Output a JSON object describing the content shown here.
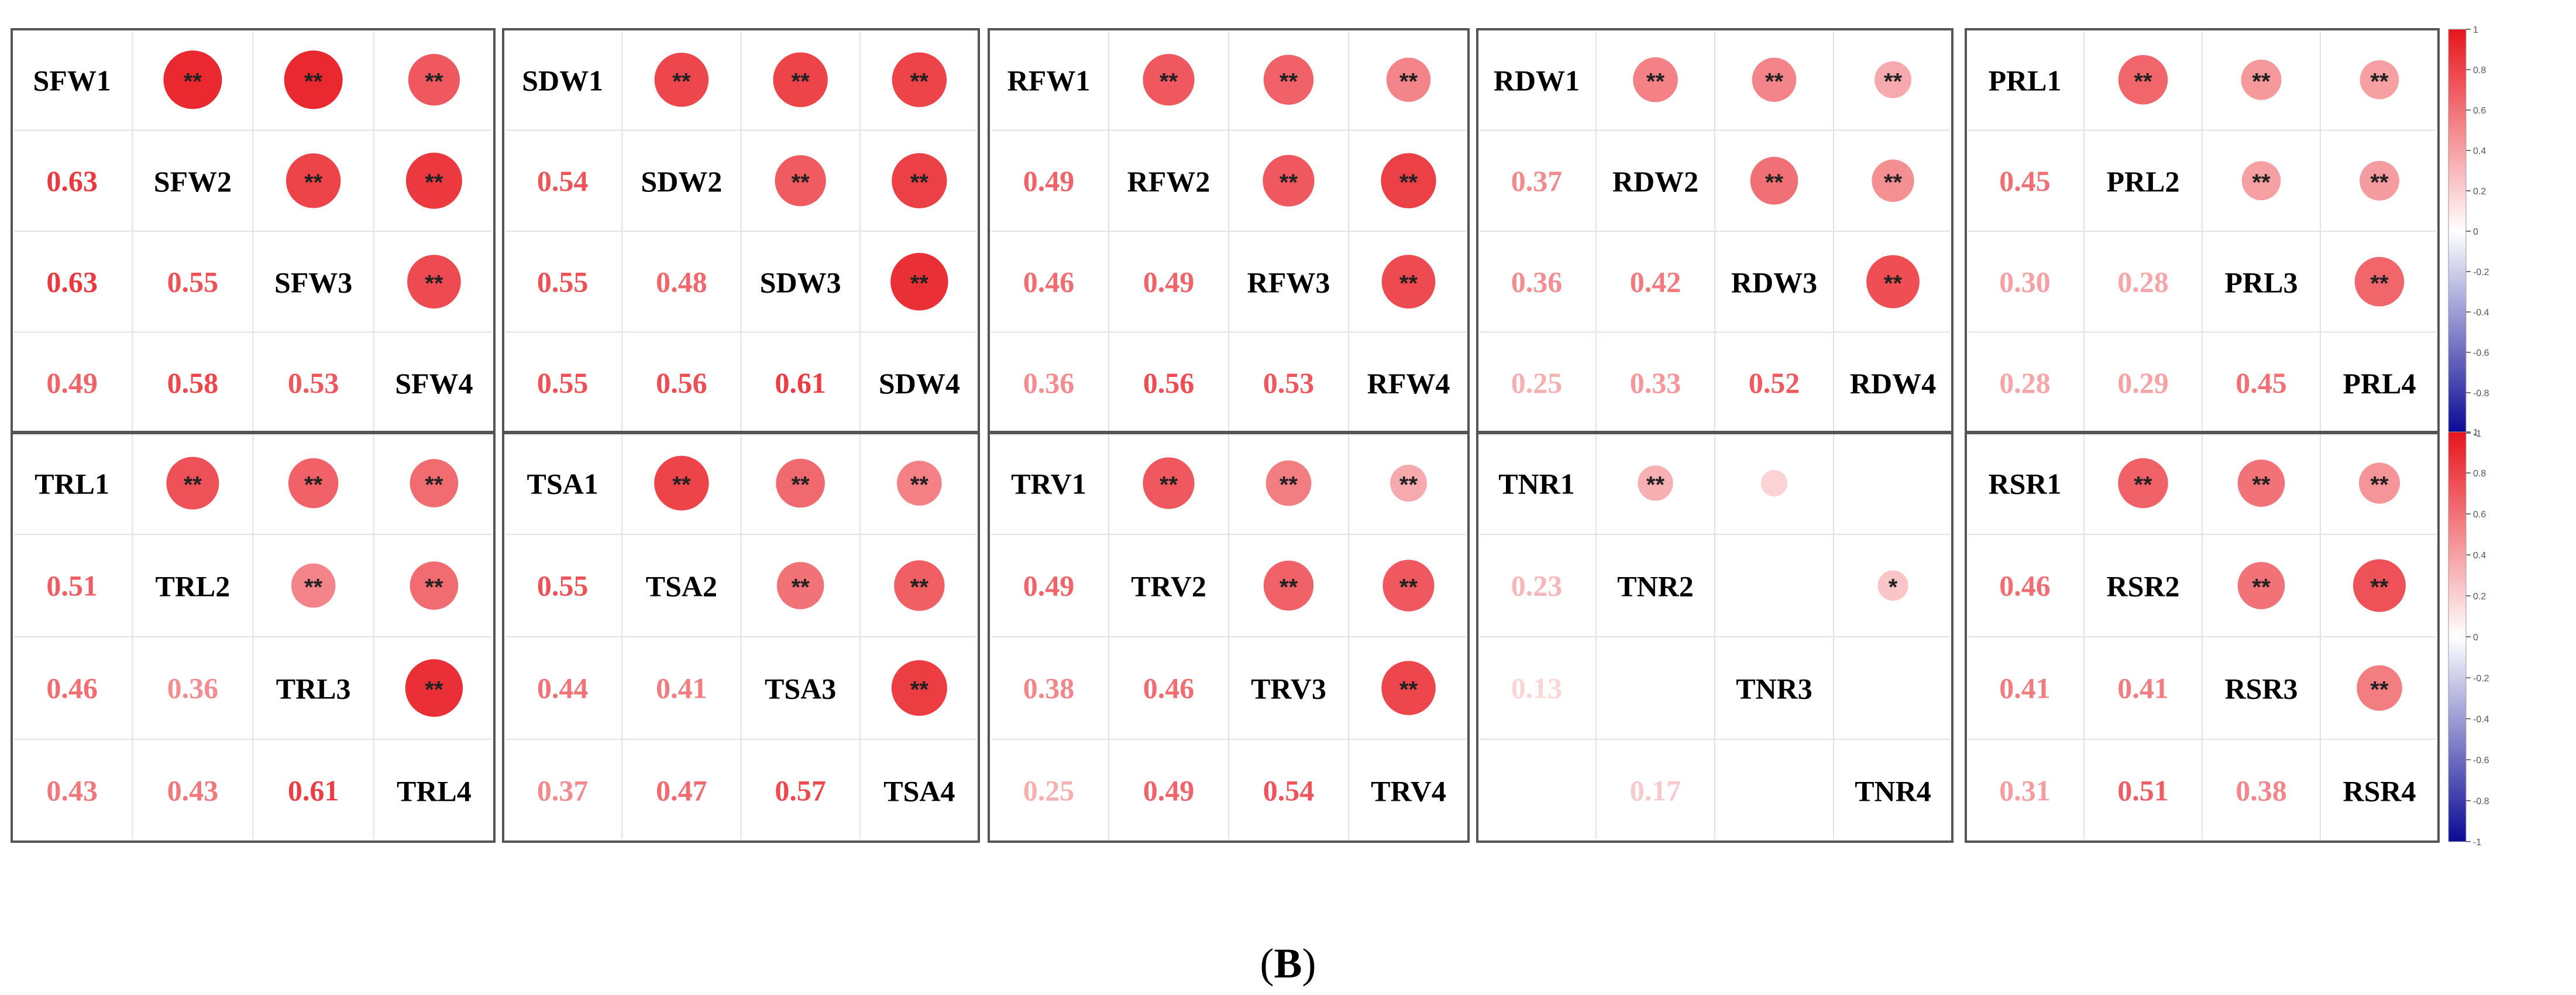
{
  "caption": {
    "open": "(",
    "label": "B",
    "close": ")"
  },
  "colorbar": {
    "ticks": [
      "1",
      "0.8",
      "0.6",
      "0.4",
      "0.2",
      "0",
      "-0.2",
      "-0.4",
      "-0.6",
      "-0.8",
      "-1"
    ],
    "colors": {
      "positive": "#e8141c",
      "neutral": "#ffffff",
      "negative": "#0a0a96"
    }
  },
  "chart_data": [
    {
      "type": "heatmap",
      "variables": [
        "SFW1",
        "SFW2",
        "SFW3",
        "SFW4"
      ],
      "lower": [
        [
          0.63
        ],
        [
          0.63,
          0.55
        ],
        [
          0.49,
          0.58,
          0.53
        ]
      ],
      "upper_sig": [
        [
          "**",
          "**",
          "**"
        ],
        [
          "**",
          "**"
        ],
        [
          "**"
        ]
      ]
    },
    {
      "type": "heatmap",
      "variables": [
        "SDW1",
        "SDW2",
        "SDW3",
        "SDW4"
      ],
      "lower": [
        [
          0.54
        ],
        [
          0.55,
          0.48
        ],
        [
          0.55,
          0.56,
          0.61
        ]
      ],
      "upper_sig": [
        [
          "**",
          "**",
          "**"
        ],
        [
          "**",
          "**"
        ],
        [
          "**"
        ]
      ]
    },
    {
      "type": "heatmap",
      "variables": [
        "RFW1",
        "RFW2",
        "RFW3",
        "RFW4"
      ],
      "lower": [
        [
          0.49
        ],
        [
          0.46,
          0.49
        ],
        [
          0.36,
          0.56,
          0.53
        ]
      ],
      "upper_sig": [
        [
          "**",
          "**",
          "**"
        ],
        [
          "**",
          "**"
        ],
        [
          "**"
        ]
      ]
    },
    {
      "type": "heatmap",
      "variables": [
        "RDW1",
        "RDW2",
        "RDW3",
        "RDW4"
      ],
      "lower": [
        [
          0.37
        ],
        [
          0.36,
          0.42
        ],
        [
          0.25,
          0.33,
          0.52
        ]
      ],
      "upper_sig": [
        [
          "**",
          "**",
          "**"
        ],
        [
          "**",
          "**"
        ],
        [
          "**"
        ]
      ]
    },
    {
      "type": "heatmap",
      "variables": [
        "PRL1",
        "PRL2",
        "PRL3",
        "PRL4"
      ],
      "lower": [
        [
          0.45
        ],
        [
          0.3,
          0.28
        ],
        [
          0.28,
          0.29,
          0.45
        ]
      ],
      "upper_sig": [
        [
          "**",
          "**",
          "**"
        ],
        [
          "**",
          "**"
        ],
        [
          "**"
        ]
      ]
    },
    {
      "type": "heatmap",
      "variables": [
        "TRL1",
        "TRL2",
        "TRL3",
        "TRL4"
      ],
      "lower": [
        [
          0.51
        ],
        [
          0.46,
          0.36
        ],
        [
          0.43,
          0.43,
          0.61
        ]
      ],
      "upper_sig": [
        [
          "**",
          "**",
          "**"
        ],
        [
          "**",
          "**"
        ],
        [
          "**"
        ]
      ]
    },
    {
      "type": "heatmap",
      "variables": [
        "TSA1",
        "TSA2",
        "TSA3",
        "TSA4"
      ],
      "lower": [
        [
          0.55
        ],
        [
          0.44,
          0.41
        ],
        [
          0.37,
          0.47,
          0.57
        ]
      ],
      "upper_sig": [
        [
          "**",
          "**",
          "**"
        ],
        [
          "**",
          "**"
        ],
        [
          "**"
        ]
      ]
    },
    {
      "type": "heatmap",
      "variables": [
        "TRV1",
        "TRV2",
        "TRV3",
        "TRV4"
      ],
      "lower": [
        [
          0.49
        ],
        [
          0.38,
          0.46
        ],
        [
          0.25,
          0.49,
          0.54
        ]
      ],
      "upper_sig": [
        [
          "**",
          "**",
          "**"
        ],
        [
          "**",
          "**"
        ],
        [
          "**"
        ]
      ]
    },
    {
      "type": "heatmap",
      "variables": [
        "TNR1",
        "TNR2",
        "TNR3",
        "TNR4"
      ],
      "lower": [
        [
          0.23
        ],
        [
          0.13,
          null
        ],
        [
          null,
          0.17,
          null
        ]
      ],
      "upper_sig": [
        [
          "**",
          "",
          ""
        ],
        [
          "",
          "*"
        ],
        [
          ""
        ]
      ]
    },
    {
      "type": "heatmap",
      "variables": [
        "RSR1",
        "RSR2",
        "RSR3",
        "RSR4"
      ],
      "lower": [
        [
          0.46
        ],
        [
          0.41,
          0.41
        ],
        [
          0.31,
          0.51,
          0.38
        ]
      ],
      "upper_sig": [
        [
          "**",
          "**",
          "**"
        ],
        [
          "**",
          "**"
        ],
        [
          "**"
        ]
      ]
    }
  ]
}
